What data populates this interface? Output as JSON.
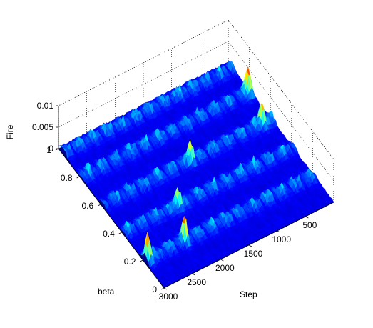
{
  "colors": {
    "background": "#ffffff",
    "colormap": "jet",
    "colormap_low": "#00008f",
    "colormap_high": "#800000",
    "box_lines": "#000000"
  },
  "chart_data": {
    "type": "surface3d",
    "title": "",
    "xlabel": "Step",
    "ylabel": "beta",
    "zlabel": "Fire",
    "xlim": [
      0,
      3000
    ],
    "ylim": [
      0,
      1
    ],
    "zlim": [
      0,
      0.01
    ],
    "x_ticks": [
      {
        "value": 500,
        "label": "500"
      },
      {
        "value": 1000,
        "label": "1000"
      },
      {
        "value": 1500,
        "label": "1500"
      },
      {
        "value": 2000,
        "label": "2000"
      },
      {
        "value": 2500,
        "label": "2500"
      },
      {
        "value": 3000,
        "label": "3000"
      }
    ],
    "y_ticks": [
      {
        "value": 0,
        "label": "0"
      },
      {
        "value": 0.2,
        "label": "0.2"
      },
      {
        "value": 0.4,
        "label": "0.4"
      },
      {
        "value": 0.6,
        "label": "0.6"
      },
      {
        "value": 0.8,
        "label": "0.8"
      },
      {
        "value": 1,
        "label": "1"
      }
    ],
    "z_ticks": [
      {
        "value": 0,
        "label": "0"
      },
      {
        "value": 0.005,
        "label": "0.005"
      },
      {
        "value": 0.01,
        "label": "0.01"
      }
    ],
    "grid": true,
    "colorbar": false,
    "ridges_beta": [
      0.18,
      0.38,
      0.58,
      0.78,
      0.95
    ],
    "peak_rows": [
      {
        "step": 60,
        "beta": 0.78,
        "fire": 0.0062
      },
      {
        "step": 180,
        "beta": 0.58,
        "fire": 0.0048
      },
      {
        "step": 2950,
        "beta": 0.18,
        "fire": 0.0058
      },
      {
        "step": 2050,
        "beta": 0.38,
        "fire": 0.004
      },
      {
        "step": 1450,
        "beta": 0.58,
        "fire": 0.0042
      },
      {
        "step": 2300,
        "beta": 0.18,
        "fire": 0.0044
      }
    ]
  }
}
